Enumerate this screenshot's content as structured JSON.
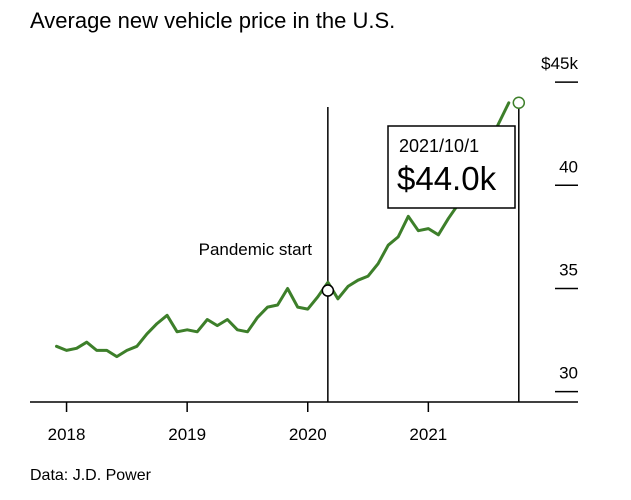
{
  "chart_data": {
    "type": "line",
    "title": "Average new vehicle price in the U.S.",
    "source": "Data: J.D. Power",
    "x_start": "2017-12-01",
    "x_tick_labels": [
      "2018",
      "2019",
      "2020",
      "2021"
    ],
    "y_tick_labels": [
      "$45k",
      "40",
      "35",
      "30"
    ],
    "ylim": [
      29.5,
      45.2
    ],
    "line_color": "#3d7f2a",
    "series": [
      {
        "values": [
          32.2,
          32.0,
          32.1,
          32.4,
          32.0,
          32.0,
          31.7,
          32.0,
          32.2,
          32.8,
          33.3,
          33.7,
          32.9,
          33.0,
          32.9,
          33.5,
          33.2,
          33.5,
          33.0,
          32.9,
          33.6,
          34.1,
          34.2,
          35.0,
          34.1,
          34.0,
          34.6,
          35.3,
          34.5,
          35.1,
          35.4,
          35.6,
          36.2,
          37.1,
          37.5,
          38.5,
          37.8,
          37.9,
          37.6,
          38.4,
          39.1,
          40.0,
          41.2,
          42.0,
          43.0,
          44.0
        ]
      }
    ],
    "annotations": [
      {
        "label": "Pandemic start",
        "date": "2020-03-01",
        "value": 34.9
      },
      {
        "date_label": "2021/10/1",
        "value_label": "$44.0k",
        "date": "2021-10-01",
        "value": 44.0
      }
    ]
  }
}
